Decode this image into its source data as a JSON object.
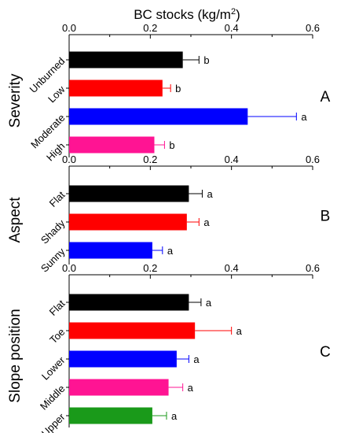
{
  "chart_data": {
    "type": "bar",
    "orientation": "horizontal",
    "title": "BC stocks (kg/m²)",
    "title_main": "BC stocks (kg/m",
    "title_sup": "2",
    "title_close": ")",
    "xlim": [
      0,
      0.6
    ],
    "x_ticks": [
      "0.0",
      "0.2",
      "0.4",
      "0.6"
    ],
    "error_bars": true,
    "panels": [
      {
        "letter": "A",
        "group_label": "Severity",
        "categories": [
          "Unburned",
          "Low",
          "Moderate",
          "High"
        ],
        "values": [
          0.28,
          0.23,
          0.44,
          0.21
        ],
        "errors": [
          0.04,
          0.02,
          0.12,
          0.025
        ],
        "significance": [
          "b",
          "b",
          "a",
          "b"
        ],
        "colors": [
          "#000000",
          "#ff0000",
          "#0000ff",
          "#ff1493"
        ]
      },
      {
        "letter": "B",
        "group_label": "Aspect",
        "categories": [
          "Flat",
          "Shady",
          "Sunny"
        ],
        "values": [
          0.295,
          0.29,
          0.205
        ],
        "errors": [
          0.033,
          0.03,
          0.025
        ],
        "significance": [
          "a",
          "a",
          "a"
        ],
        "colors": [
          "#000000",
          "#ff0000",
          "#0000ff"
        ]
      },
      {
        "letter": "C",
        "group_label": "Slope position",
        "categories": [
          "Flat",
          "Toe",
          "Lower",
          "Middle",
          "Upper"
        ],
        "values": [
          0.295,
          0.31,
          0.265,
          0.245,
          0.205
        ],
        "errors": [
          0.03,
          0.09,
          0.03,
          0.035,
          0.035
        ],
        "significance": [
          "a",
          "a",
          "a",
          "a",
          "a"
        ],
        "colors": [
          "#000000",
          "#ff0000",
          "#0000ff",
          "#ff1493",
          "#1a9a1a"
        ]
      }
    ]
  }
}
